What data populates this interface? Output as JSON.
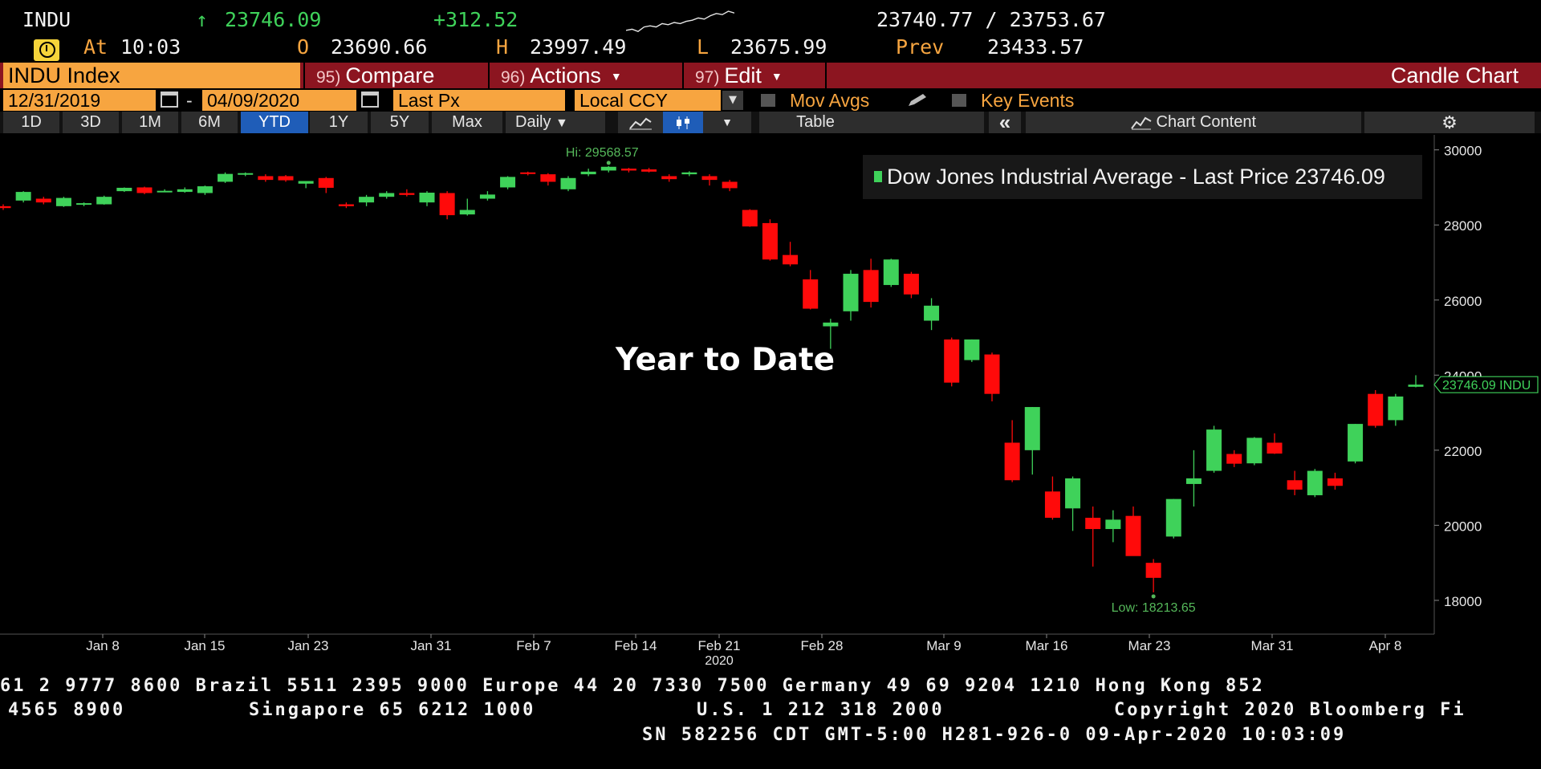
{
  "quote": {
    "ticker": "INDU",
    "arrow": "↑",
    "last": "23746.09",
    "change": "+312.52",
    "bid_ask": "23740.77 / 23753.67",
    "at_label": "At",
    "time": "10:03",
    "open_label": "O",
    "open": "23690.66",
    "high_label": "H",
    "high": "23997.49",
    "low_label": "L",
    "low": "23675.99",
    "prev_label": "Prev",
    "prev": "23433.57",
    "sparkline": [
      0.15,
      0.2,
      0.1,
      0.3,
      0.35,
      0.3,
      0.45,
      0.4,
      0.5,
      0.45,
      0.55,
      0.6,
      0.7,
      0.65,
      0.8,
      0.9,
      0.85,
      1.0,
      0.92
    ]
  },
  "command_bar": {
    "security": "INDU Index",
    "compare_num": "95)",
    "compare": "Compare",
    "actions_num": "96)",
    "actions": "Actions",
    "edit_num": "97)",
    "edit": "Edit",
    "chart_type": "Candle Chart"
  },
  "settings": {
    "start_date": "12/31/2019",
    "dash": "-",
    "end_date": "04/09/2020",
    "field": "Last Px",
    "currency": "Local CCY",
    "mov_avgs": "Mov Avgs",
    "key_events": "Key Events"
  },
  "periods": [
    {
      "label": "1D",
      "active": false
    },
    {
      "label": "3D",
      "active": false
    },
    {
      "label": "1M",
      "active": false
    },
    {
      "label": "6M",
      "active": false
    },
    {
      "label": "YTD",
      "active": true
    },
    {
      "label": "1Y",
      "active": false
    },
    {
      "label": "5Y",
      "active": false
    },
    {
      "label": "Max",
      "active": false
    }
  ],
  "toolbar": {
    "frequency": "Daily",
    "table": "Table",
    "chart_content": "Chart Content"
  },
  "colors": {
    "up": "#3fd25a",
    "down": "#ff0a0a",
    "axis_text": "#e6e6e6",
    "annotation": "#55b85a",
    "accent_orange": "#f7a540",
    "bar_red": "#8c1520",
    "active_blue": "#1f5db8"
  },
  "chart_data": {
    "type": "candlestick",
    "legend": "Dow Jones Industrial Average - Last Price 23746.09",
    "overlay_text": "Year to Date",
    "last_label": "23746.09 INDU",
    "hi_label": "Hi: 29568.57",
    "low_label": "Low: 18213.65",
    "ylim": [
      17100,
      30400
    ],
    "y_ticks": [
      18000,
      20000,
      22000,
      24000,
      26000,
      28000,
      30000
    ],
    "x_ticks": [
      "Jan 8",
      "Jan 15",
      "Jan 23",
      "Jan 31",
      "Feb 7",
      "Feb 14",
      "Feb 21",
      "Feb 28",
      "Mar 9",
      "Mar 16",
      "Mar 23",
      "Mar 31",
      "Apr 8"
    ],
    "x_tick_sublabel": "2020",
    "candles": [
      {
        "o": 28500,
        "h": 28550,
        "l": 28400,
        "c": 28450
      },
      {
        "o": 28650,
        "h": 28900,
        "l": 28600,
        "c": 28880
      },
      {
        "o": 28700,
        "h": 28750,
        "l": 28550,
        "c": 28600
      },
      {
        "o": 28500,
        "h": 28750,
        "l": 28480,
        "c": 28720
      },
      {
        "o": 28560,
        "h": 28600,
        "l": 28500,
        "c": 28580
      },
      {
        "o": 28550,
        "h": 28780,
        "l": 28540,
        "c": 28750
      },
      {
        "o": 28900,
        "h": 29000,
        "l": 28880,
        "c": 28990
      },
      {
        "o": 29000,
        "h": 29020,
        "l": 28820,
        "c": 28850
      },
      {
        "o": 28900,
        "h": 28950,
        "l": 28880,
        "c": 28910
      },
      {
        "o": 28880,
        "h": 29000,
        "l": 28860,
        "c": 28950
      },
      {
        "o": 28850,
        "h": 29050,
        "l": 28800,
        "c": 29030
      },
      {
        "o": 29150,
        "h": 29400,
        "l": 29120,
        "c": 29360
      },
      {
        "o": 29350,
        "h": 29400,
        "l": 29300,
        "c": 29380
      },
      {
        "o": 29300,
        "h": 29350,
        "l": 29150,
        "c": 29200
      },
      {
        "o": 29300,
        "h": 29330,
        "l": 29150,
        "c": 29190
      },
      {
        "o": 29100,
        "h": 29150,
        "l": 28980,
        "c": 29170
      },
      {
        "o": 29250,
        "h": 29280,
        "l": 28850,
        "c": 28990
      },
      {
        "o": 28550,
        "h": 28600,
        "l": 28450,
        "c": 28500
      },
      {
        "o": 28600,
        "h": 28800,
        "l": 28500,
        "c": 28750
      },
      {
        "o": 28750,
        "h": 28900,
        "l": 28700,
        "c": 28850
      },
      {
        "o": 28850,
        "h": 28950,
        "l": 28760,
        "c": 28800
      },
      {
        "o": 28600,
        "h": 28900,
        "l": 28500,
        "c": 28860
      },
      {
        "o": 28850,
        "h": 28900,
        "l": 28150,
        "c": 28260
      },
      {
        "o": 28280,
        "h": 28700,
        "l": 28250,
        "c": 28400
      },
      {
        "o": 28700,
        "h": 28900,
        "l": 28650,
        "c": 28810
      },
      {
        "o": 29000,
        "h": 29300,
        "l": 28950,
        "c": 29280
      },
      {
        "o": 29400,
        "h": 29420,
        "l": 29320,
        "c": 29380
      },
      {
        "o": 29350,
        "h": 29380,
        "l": 29050,
        "c": 29150
      },
      {
        "o": 28950,
        "h": 29300,
        "l": 28900,
        "c": 29250
      },
      {
        "o": 29350,
        "h": 29500,
        "l": 29300,
        "c": 29420
      },
      {
        "o": 29450,
        "h": 29568,
        "l": 29400,
        "c": 29550
      },
      {
        "o": 29500,
        "h": 29520,
        "l": 29400,
        "c": 29450
      },
      {
        "o": 29480,
        "h": 29520,
        "l": 29400,
        "c": 29420
      },
      {
        "o": 29300,
        "h": 29350,
        "l": 29150,
        "c": 29220
      },
      {
        "o": 29350,
        "h": 29430,
        "l": 29300,
        "c": 29400
      },
      {
        "o": 29300,
        "h": 29350,
        "l": 29050,
        "c": 29200
      },
      {
        "o": 29150,
        "h": 29200,
        "l": 28900,
        "c": 28980
      },
      {
        "o": 28400,
        "h": 28420,
        "l": 27950,
        "c": 27960
      },
      {
        "o": 28050,
        "h": 28150,
        "l": 27050,
        "c": 27080
      },
      {
        "o": 27200,
        "h": 27550,
        "l": 26900,
        "c": 26950
      },
      {
        "o": 26550,
        "h": 26800,
        "l": 25750,
        "c": 25770
      },
      {
        "o": 25300,
        "h": 25500,
        "l": 24700,
        "c": 25400
      },
      {
        "o": 25700,
        "h": 26800,
        "l": 25450,
        "c": 26700
      },
      {
        "o": 26800,
        "h": 27100,
        "l": 25800,
        "c": 25950
      },
      {
        "o": 26400,
        "h": 27100,
        "l": 26350,
        "c": 27080
      },
      {
        "o": 26700,
        "h": 26750,
        "l": 26050,
        "c": 26150
      },
      {
        "o": 25450,
        "h": 26050,
        "l": 25200,
        "c": 25850
      },
      {
        "o": 24950,
        "h": 25000,
        "l": 23700,
        "c": 23800
      },
      {
        "o": 24400,
        "h": 24950,
        "l": 24350,
        "c": 24950
      },
      {
        "o": 24550,
        "h": 24600,
        "l": 23300,
        "c": 23500
      },
      {
        "o": 22200,
        "h": 22800,
        "l": 21150,
        "c": 21200
      },
      {
        "o": 22000,
        "h": 23150,
        "l": 21350,
        "c": 23150
      },
      {
        "o": 20900,
        "h": 21300,
        "l": 20150,
        "c": 20200
      },
      {
        "o": 20450,
        "h": 21300,
        "l": 19850,
        "c": 21250
      },
      {
        "o": 20200,
        "h": 20500,
        "l": 18900,
        "c": 19900
      },
      {
        "o": 19900,
        "h": 20400,
        "l": 19550,
        "c": 20150
      },
      {
        "o": 20250,
        "h": 20500,
        "l": 19200,
        "c": 19180
      },
      {
        "o": 19000,
        "h": 19100,
        "l": 18213,
        "c": 18600
      },
      {
        "o": 19700,
        "h": 20700,
        "l": 19650,
        "c": 20700
      },
      {
        "o": 21100,
        "h": 22000,
        "l": 20500,
        "c": 21250
      },
      {
        "o": 21450,
        "h": 22650,
        "l": 21400,
        "c": 22550
      },
      {
        "o": 21900,
        "h": 22000,
        "l": 21550,
        "c": 21640
      },
      {
        "o": 21650,
        "h": 22350,
        "l": 21600,
        "c": 22330
      },
      {
        "o": 22200,
        "h": 22450,
        "l": 21900,
        "c": 21910
      },
      {
        "o": 21200,
        "h": 21450,
        "l": 20800,
        "c": 20950
      },
      {
        "o": 20800,
        "h": 21500,
        "l": 20750,
        "c": 21450
      },
      {
        "o": 21250,
        "h": 21400,
        "l": 20950,
        "c": 21050
      },
      {
        "o": 21700,
        "h": 22700,
        "l": 21650,
        "c": 22700
      },
      {
        "o": 23500,
        "h": 23600,
        "l": 22600,
        "c": 22650
      },
      {
        "o": 22800,
        "h": 23500,
        "l": 22650,
        "c": 23430
      },
      {
        "o": 23690,
        "h": 23997,
        "l": 23675,
        "c": 23746
      }
    ]
  },
  "footer": {
    "line1": "61 2 9777 8600 Brazil 5511 2395 9000 Europe 44 20 7330 7500 Germany 49 69 9204 1210 Hong Kong 852",
    "line2a": "4565 8900",
    "line2b": "Singapore 65 6212 1000",
    "line2c": "U.S. 1 212 318 2000",
    "line2d": "Copyright 2020 Bloomberg Fi",
    "line3": "SN 582256 CDT  GMT-5:00 H281-926-0 09-Apr-2020 10:03:09"
  }
}
